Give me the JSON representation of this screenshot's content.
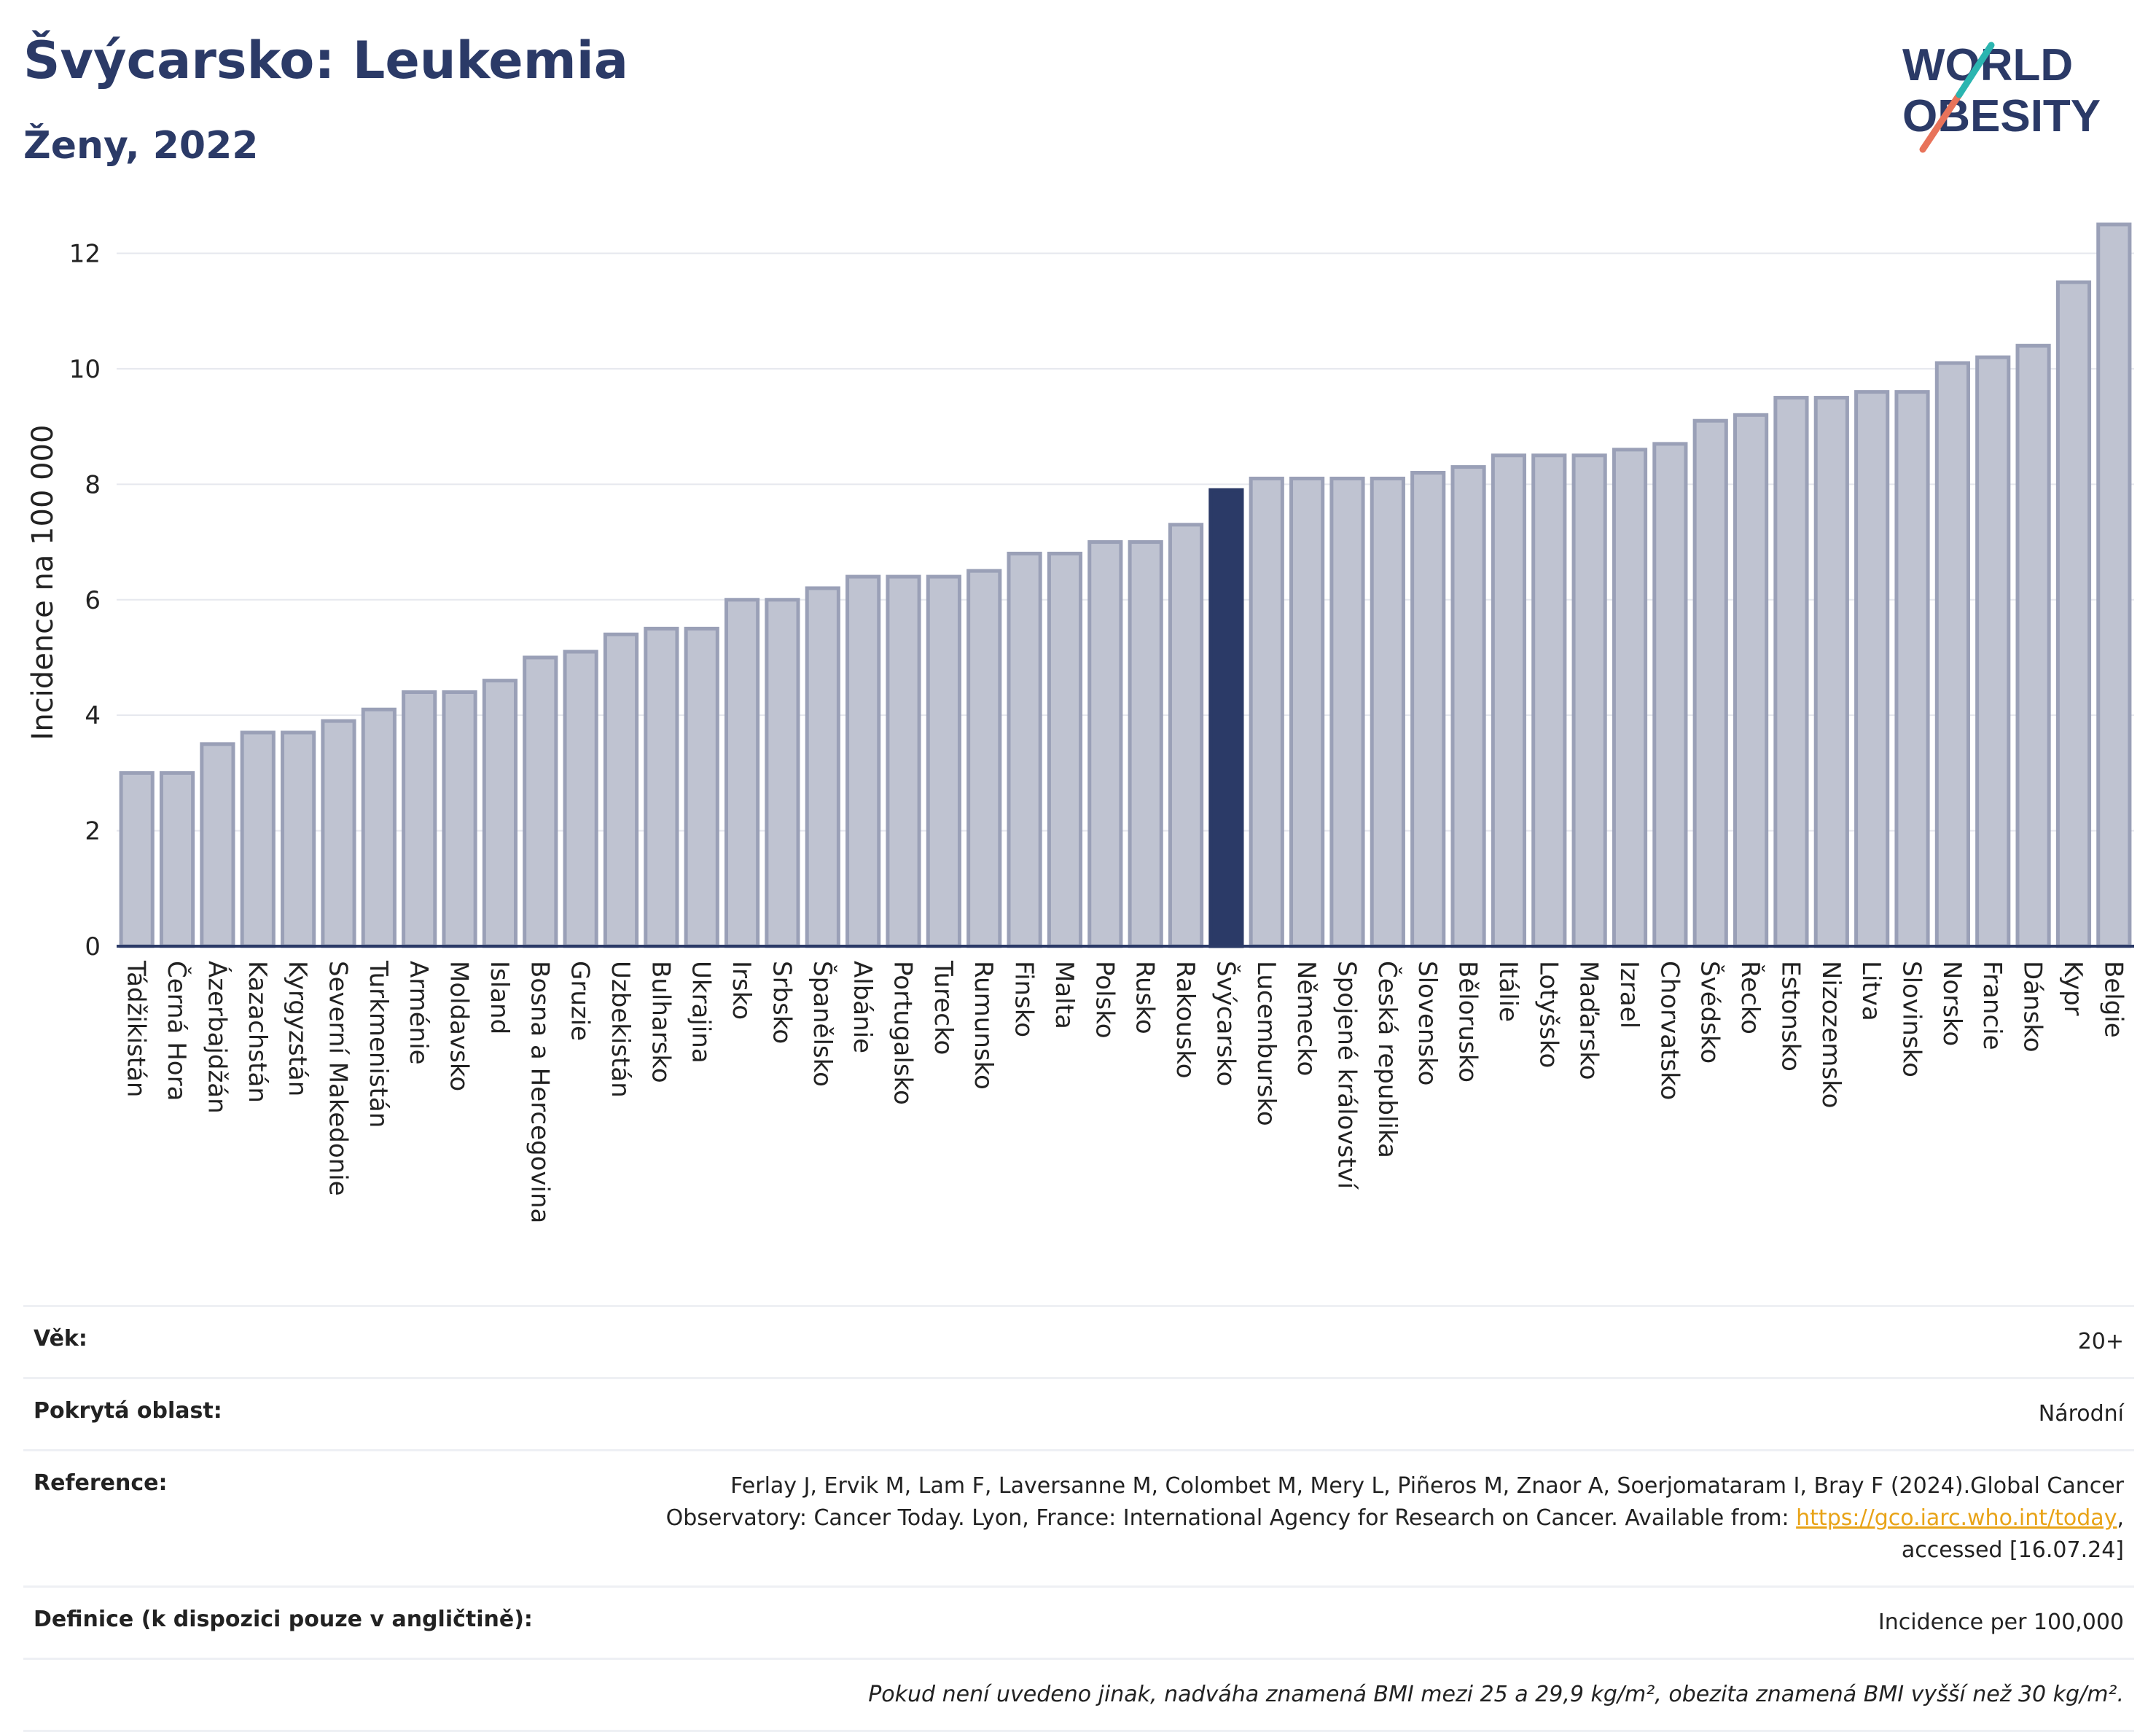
{
  "header": {
    "title": "Švýcarsko: Leukemia",
    "subtitle": "Ženy, 2022"
  },
  "logo": {
    "line1": "WORLD",
    "line2": "OBESITY"
  },
  "colors": {
    "bar": "#bfc3d1",
    "bar_stroke": "#9aa0b7",
    "highlight": "#2b3a67",
    "grid": "#e6e8ee",
    "axis": "#2b3a67"
  },
  "chart_data": {
    "type": "bar",
    "ylabel": "Incidence na 100 000",
    "ylim": [
      0,
      12.6
    ],
    "yticks": [
      0,
      2,
      4,
      6,
      8,
      10,
      12
    ],
    "grid": true,
    "highlight": "Švýcarsko",
    "categories": [
      "Tádžikistán",
      "Černá Hora",
      "Ázerbajdžán",
      "Kazachstán",
      "Kyrgyzstán",
      "Severní Makedonie",
      "Turkmenistán",
      "Arménie",
      "Moldavsko",
      "Island",
      "Bosna a Hercegovina",
      "Gruzie",
      "Uzbekistán",
      "Bulharsko",
      "Ukrajina",
      "Irsko",
      "Srbsko",
      "Španělsko",
      "Albánie",
      "Portugalsko",
      "Turecko",
      "Rumunsko",
      "Finsko",
      "Malta",
      "Polsko",
      "Rusko",
      "Rakousko",
      "Švýcarsko",
      "Lucembursko",
      "Německo",
      "Spojené království",
      "Česká republika",
      "Slovensko",
      "Bělorusko",
      "Itálie",
      "Lotyšsko",
      "Maďarsko",
      "Izrael",
      "Chorvatsko",
      "Švédsko",
      "Řecko",
      "Estonsko",
      "Nizozemsko",
      "Litva",
      "Slovinsko",
      "Norsko",
      "Francie",
      "Dánsko",
      "Kypr",
      "Belgie"
    ],
    "values": [
      3.0,
      3.0,
      3.5,
      3.7,
      3.7,
      3.9,
      4.1,
      4.4,
      4.4,
      4.6,
      5.0,
      5.1,
      5.4,
      5.5,
      5.5,
      6.0,
      6.0,
      6.2,
      6.4,
      6.4,
      6.4,
      6.5,
      6.8,
      6.8,
      7.0,
      7.0,
      7.3,
      7.9,
      8.1,
      8.1,
      8.1,
      8.1,
      8.2,
      8.3,
      8.5,
      8.5,
      8.5,
      8.6,
      8.7,
      9.1,
      9.2,
      9.5,
      9.5,
      9.6,
      9.6,
      10.1,
      10.2,
      10.4,
      11.5,
      12.5
    ]
  },
  "info": {
    "age_label": "Věk:",
    "age_value": "20+",
    "area_label": "Pokrytá oblast:",
    "area_value": "Národní",
    "ref_label": "Reference:",
    "ref_text1": "Ferlay J, Ervik M, Lam F, Laversanne M, Colombet M, Mery L, Piñeros M, Znaor A, Soerjomataram I, Bray F (2024).Global Cancer Observatory: Cancer Today. Lyon, France: International Agency for Research on Cancer. Available from: ",
    "ref_link": "https://gco.iarc.who.int/today",
    "ref_text2": ", accessed [16.07.24]",
    "def_label": "Definice (k dispozici pouze v angličtině):",
    "def_value": "Incidence per 100,000",
    "note": "Pokud není uvedeno jinak, nadváha znamená BMI mezi 25 a 29,9 kg/m², obezita znamená BMI vyšší než 30 kg/m²."
  }
}
